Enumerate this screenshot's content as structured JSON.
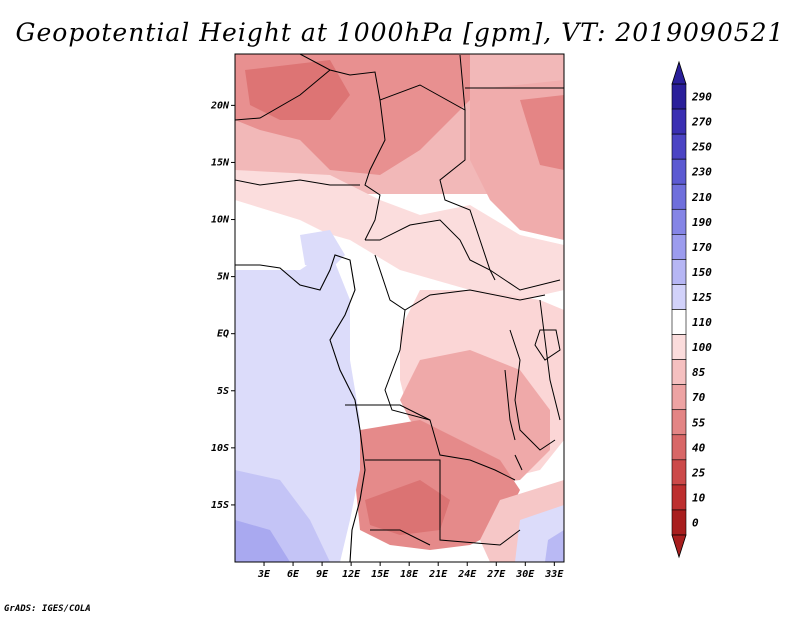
{
  "title": "Geopotential Height at 1000hPa [gpm], VT: 2019090521",
  "credit": "GrADS: IGES/COLA",
  "map": {
    "lat_labels": [
      "20N",
      "15N",
      "10N",
      "5N",
      "EQ",
      "5S",
      "10S",
      "15S"
    ],
    "lon_labels": [
      "3E",
      "6E",
      "9E",
      "12E",
      "15E",
      "18E",
      "21E",
      "24E",
      "27E",
      "30E",
      "33E"
    ],
    "lon_range": [
      0,
      34
    ],
    "lat_range": [
      -20,
      24.5
    ]
  },
  "colorbar": {
    "labels": [
      "290",
      "270",
      "250",
      "230",
      "210",
      "190",
      "170",
      "150",
      "125",
      "110",
      "100",
      "85",
      "70",
      "55",
      "40",
      "25",
      "10",
      "0"
    ],
    "colors": [
      "#2a1f9a",
      "#3a2fb2",
      "#4b44c4",
      "#5c5ad2",
      "#6f6fdc",
      "#8585e6",
      "#9c9cee",
      "#b6b6f4",
      "#d2d2fa",
      "#ffffff",
      "#fbdcdc",
      "#f5c0c0",
      "#eda3a3",
      "#e38585",
      "#d86767",
      "#cc4a4a",
      "#bd2f2f",
      "#a81e1e"
    ]
  }
}
